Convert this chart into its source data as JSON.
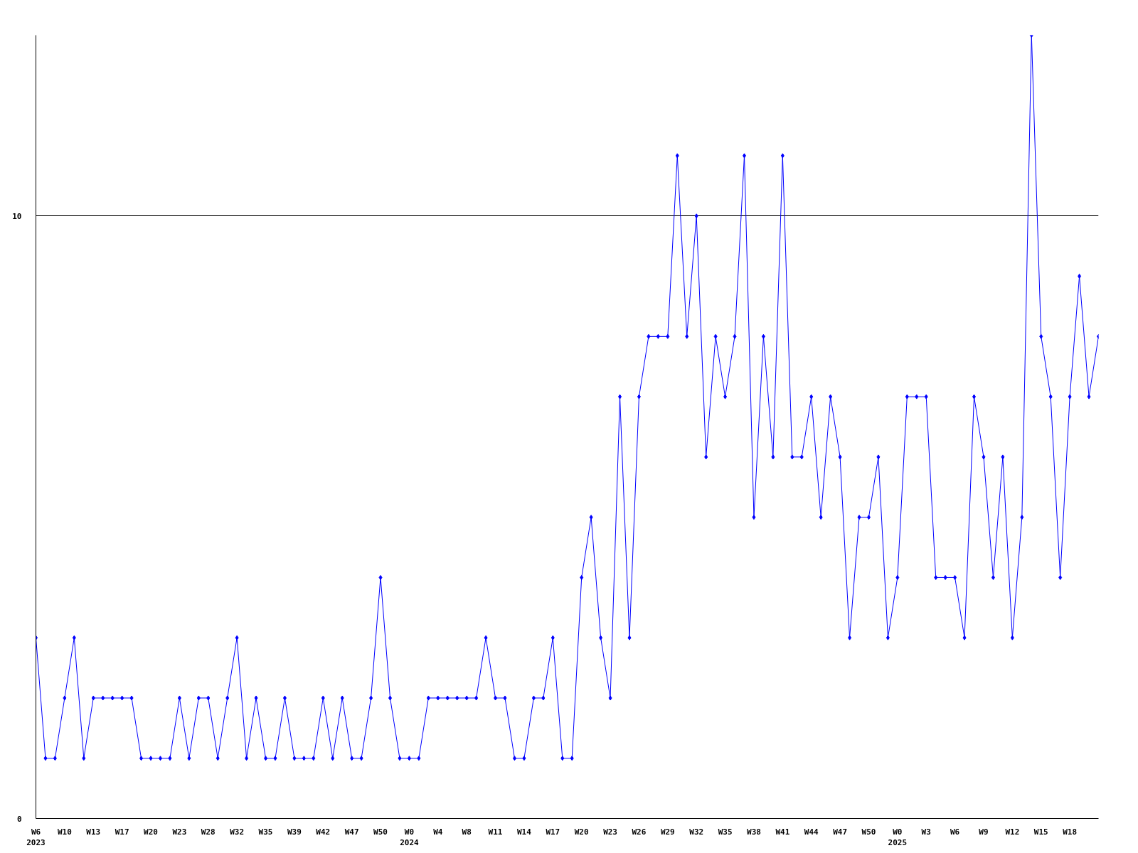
{
  "chart_data": {
    "type": "line",
    "categories": [
      "W6\n2023",
      null,
      null,
      "W10",
      null,
      null,
      "W13",
      null,
      null,
      "W17",
      null,
      null,
      "W20",
      null,
      null,
      "W23",
      null,
      null,
      "W28",
      null,
      null,
      "W32",
      null,
      null,
      "W35",
      null,
      null,
      "W39",
      null,
      null,
      "W42",
      null,
      null,
      "W47",
      null,
      null,
      "W50",
      null,
      null,
      "W0\n2024",
      null,
      null,
      "W4",
      null,
      null,
      "W8",
      null,
      null,
      "W11",
      null,
      null,
      "W14",
      null,
      null,
      "W17",
      null,
      null,
      "W20",
      null,
      null,
      "W23",
      null,
      null,
      "W26",
      null,
      null,
      "W29",
      null,
      null,
      "W32",
      null,
      null,
      "W35",
      null,
      null,
      "W38",
      null,
      null,
      "W41",
      null,
      null,
      "W44",
      null,
      null,
      "W47",
      null,
      null,
      "W50",
      null,
      null,
      "W0\n2025",
      null,
      null,
      "W3",
      null,
      null,
      "W6",
      null,
      null,
      "W9",
      null,
      null,
      "W12",
      null,
      null,
      "W15",
      null,
      null,
      "W18",
      null,
      null,
      null
    ],
    "values": [
      3,
      1,
      1,
      2,
      3,
      1,
      2,
      2,
      2,
      2,
      2,
      1,
      1,
      1,
      1,
      2,
      1,
      2,
      2,
      1,
      2,
      3,
      1,
      2,
      1,
      1,
      2,
      1,
      1,
      1,
      2,
      1,
      2,
      1,
      1,
      2,
      4,
      2,
      1,
      1,
      1,
      2,
      2,
      2,
      2,
      2,
      2,
      3,
      2,
      2,
      1,
      1,
      2,
      2,
      3,
      1,
      1,
      4,
      5,
      3,
      2,
      7,
      3,
      7,
      8,
      8,
      8,
      11,
      8,
      10,
      6,
      8,
      7,
      8,
      11,
      5,
      8,
      6,
      11,
      6,
      6,
      7,
      5,
      7,
      6,
      3,
      5,
      5,
      6,
      3,
      4,
      7,
      7,
      7,
      4,
      4,
      4,
      3,
      7,
      6,
      4,
      6,
      3,
      5,
      13,
      8,
      7,
      4,
      7,
      9,
      7,
      8
    ],
    "color": "#0000ff",
    "ylim": [
      0,
      13
    ],
    "yticks": [
      0,
      10
    ],
    "grid": "y",
    "marker": "diamond",
    "line_style": "solid"
  }
}
